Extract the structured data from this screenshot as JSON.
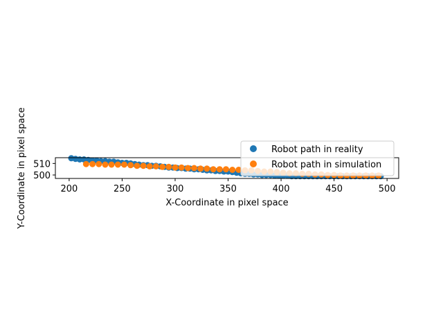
{
  "chart_data": {
    "type": "scatter",
    "title": "",
    "xlabel": "X-Coordinate in pixel space",
    "ylabel": "Y-Coordinate in pixel space",
    "xlim": [
      187,
      511
    ],
    "ylim": [
      497,
      515
    ],
    "xticks": [
      200,
      250,
      300,
      350,
      400,
      450,
      500
    ],
    "yticks": [
      500,
      510
    ],
    "grid": false,
    "legend": "upper-right",
    "series": [
      {
        "name": "Robot path in reality",
        "color": "#1f77b4",
        "x": [
          202,
          206,
          210,
          214,
          218,
          222,
          226,
          230,
          234,
          238,
          242,
          246,
          250,
          254,
          258,
          262,
          266,
          270,
          274,
          278,
          282,
          286,
          290,
          294,
          298,
          302,
          306,
          310,
          314,
          318,
          322,
          326,
          330,
          334,
          338,
          342,
          346,
          350,
          354,
          358,
          362,
          366,
          370,
          374,
          378,
          382,
          386,
          390,
          394,
          398,
          402,
          406,
          410,
          414,
          418,
          422,
          426,
          430,
          434,
          438,
          442,
          446,
          450,
          454,
          458,
          462,
          466,
          470,
          474,
          478,
          482,
          486,
          490,
          494
        ],
        "y": [
          514.5,
          514,
          513.5,
          513.5,
          513,
          512.5,
          512.5,
          512,
          512,
          511.5,
          511.5,
          511,
          510.5,
          510.5,
          510,
          509.5,
          509,
          508.5,
          508.5,
          508,
          508,
          507.5,
          507,
          506.5,
          506.5,
          506,
          506,
          505.5,
          505.5,
          505,
          505,
          504.5,
          504,
          504,
          503.5,
          503.5,
          503,
          503,
          502.5,
          502,
          501.5,
          501,
          501,
          500.5,
          500.5,
          500,
          500,
          500,
          499.5,
          499.5,
          499.5,
          499.5,
          499,
          499,
          499,
          499,
          499,
          499,
          499,
          499,
          499,
          499,
          499,
          499,
          499,
          499,
          499,
          499,
          499,
          499,
          499,
          499,
          499,
          499
        ]
      },
      {
        "name": "Robot path in simulation",
        "color": "#ff7f0e",
        "x": [
          216,
          222,
          228,
          234,
          240,
          246,
          252,
          258,
          264,
          270,
          276,
          282,
          288,
          294,
          300,
          306,
          312,
          318,
          324,
          330,
          336,
          342,
          348,
          354,
          360,
          366,
          372,
          378,
          384,
          390,
          396,
          402,
          408,
          414,
          420,
          426,
          432,
          438,
          444,
          450,
          456,
          462,
          468,
          474,
          480,
          486,
          492
        ],
        "y": [
          509.5,
          509.5,
          509.5,
          509,
          509,
          509,
          509,
          508.5,
          508,
          508,
          507.5,
          507.5,
          507,
          507,
          506.5,
          506.5,
          506,
          506,
          505.5,
          505.5,
          505,
          505,
          505,
          504.5,
          504.5,
          504,
          504,
          503.5,
          503,
          503,
          502.5,
          502,
          501.5,
          501.5,
          501,
          501,
          500.5,
          500.5,
          500,
          500,
          499.5,
          499.5,
          499.5,
          499.5,
          499.5,
          499.5,
          499.5
        ]
      }
    ]
  }
}
